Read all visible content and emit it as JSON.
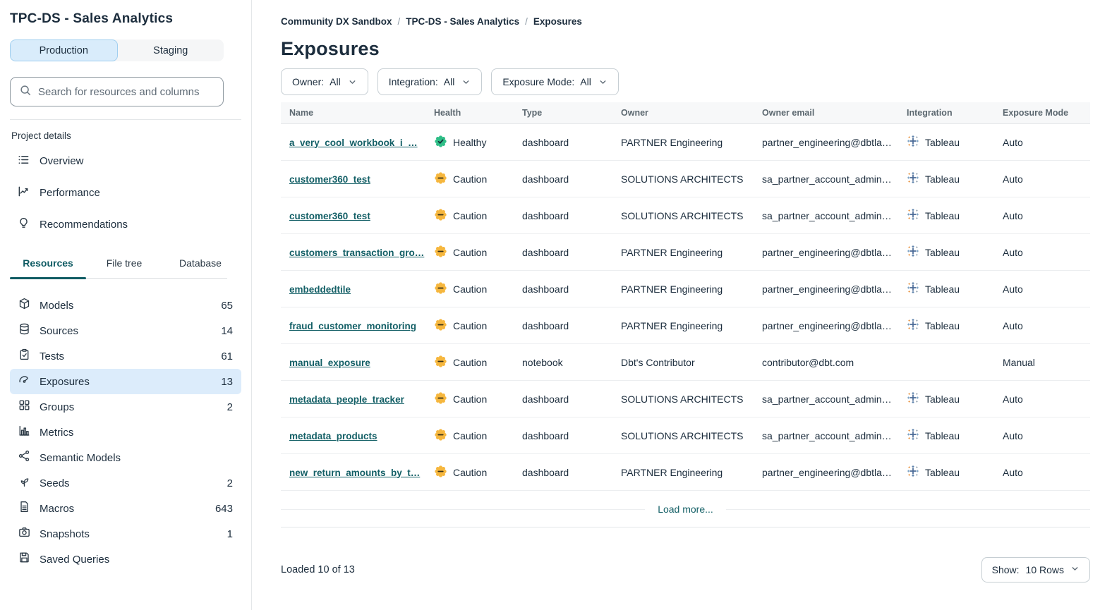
{
  "sidebar": {
    "title": "TPC-DS - Sales Analytics",
    "env": {
      "production": "Production",
      "staging": "Staging"
    },
    "search_placeholder": "Search for resources and columns",
    "project_details_label": "Project details",
    "project_links": [
      {
        "label": "Overview",
        "icon": "overview-icon"
      },
      {
        "label": "Performance",
        "icon": "performance-icon"
      },
      {
        "label": "Recommendations",
        "icon": "recommendations-icon"
      }
    ],
    "tabs": [
      {
        "label": "Resources",
        "active": true
      },
      {
        "label": "File tree",
        "active": false
      },
      {
        "label": "Database",
        "active": false
      }
    ],
    "resources": [
      {
        "label": "Models",
        "count": "65",
        "icon": "models-icon",
        "active": false
      },
      {
        "label": "Sources",
        "count": "14",
        "icon": "sources-icon",
        "active": false
      },
      {
        "label": "Tests",
        "count": "61",
        "icon": "tests-icon",
        "active": false
      },
      {
        "label": "Exposures",
        "count": "13",
        "icon": "exposures-icon",
        "active": true
      },
      {
        "label": "Groups",
        "count": "2",
        "icon": "groups-icon",
        "active": false
      },
      {
        "label": "Metrics",
        "count": "",
        "icon": "metrics-icon",
        "active": false
      },
      {
        "label": "Semantic Models",
        "count": "",
        "icon": "semantic-models-icon",
        "active": false
      },
      {
        "label": "Seeds",
        "count": "2",
        "icon": "seeds-icon",
        "active": false
      },
      {
        "label": "Macros",
        "count": "643",
        "icon": "macros-icon",
        "active": false
      },
      {
        "label": "Snapshots",
        "count": "1",
        "icon": "snapshots-icon",
        "active": false
      },
      {
        "label": "Saved Queries",
        "count": "",
        "icon": "saved-queries-icon",
        "active": false
      }
    ]
  },
  "breadcrumb": [
    "Community DX Sandbox",
    "TPC-DS - Sales Analytics",
    "Exposures"
  ],
  "page": {
    "title": "Exposures"
  },
  "filters": [
    {
      "label": "Owner:",
      "value": "All"
    },
    {
      "label": "Integration:",
      "value": "All"
    },
    {
      "label": "Exposure Mode:",
      "value": "All"
    }
  ],
  "table": {
    "columns": [
      "Name",
      "Health",
      "Type",
      "Owner",
      "Owner email",
      "Integration",
      "Exposure Mode"
    ],
    "rows": [
      {
        "name": "a_very_cool_workbook_i_…",
        "health": "Healthy",
        "health_status": "healthy",
        "type": "dashboard",
        "owner": "PARTNER Engineering",
        "email": "partner_engineering@dbtla…",
        "integration": "Tableau",
        "mode": "Auto"
      },
      {
        "name": "customer360_test",
        "health": "Caution",
        "health_status": "caution",
        "type": "dashboard",
        "owner": "SOLUTIONS ARCHITECTS",
        "email": "sa_partner_account_admin…",
        "integration": "Tableau",
        "mode": "Auto"
      },
      {
        "name": "customer360_test",
        "health": "Caution",
        "health_status": "caution",
        "type": "dashboard",
        "owner": "SOLUTIONS ARCHITECTS",
        "email": "sa_partner_account_admin…",
        "integration": "Tableau",
        "mode": "Auto"
      },
      {
        "name": "customers_transaction_gro…",
        "health": "Caution",
        "health_status": "caution",
        "type": "dashboard",
        "owner": "PARTNER Engineering",
        "email": "partner_engineering@dbtla…",
        "integration": "Tableau",
        "mode": "Auto"
      },
      {
        "name": "embeddedtile",
        "health": "Caution",
        "health_status": "caution",
        "type": "dashboard",
        "owner": "PARTNER Engineering",
        "email": "partner_engineering@dbtla…",
        "integration": "Tableau",
        "mode": "Auto"
      },
      {
        "name": "fraud_customer_monitoring",
        "health": "Caution",
        "health_status": "caution",
        "type": "dashboard",
        "owner": "PARTNER Engineering",
        "email": "partner_engineering@dbtla…",
        "integration": "Tableau",
        "mode": "Auto"
      },
      {
        "name": "manual_exposure",
        "health": "Caution",
        "health_status": "caution",
        "type": "notebook",
        "owner": "Dbt's Contributor",
        "email": "contributor@dbt.com",
        "integration": "",
        "mode": "Manual"
      },
      {
        "name": "metadata_people_tracker",
        "health": "Caution",
        "health_status": "caution",
        "type": "dashboard",
        "owner": "SOLUTIONS ARCHITECTS",
        "email": "sa_partner_account_admin…",
        "integration": "Tableau",
        "mode": "Auto"
      },
      {
        "name": "metadata_products",
        "health": "Caution",
        "health_status": "caution",
        "type": "dashboard",
        "owner": "SOLUTIONS ARCHITECTS",
        "email": "sa_partner_account_admin…",
        "integration": "Tableau",
        "mode": "Auto"
      },
      {
        "name": "new_return_amounts_by_t…",
        "health": "Caution",
        "health_status": "caution",
        "type": "dashboard",
        "owner": "PARTNER Engineering",
        "email": "partner_engineering@dbtla…",
        "integration": "Tableau",
        "mode": "Auto"
      }
    ],
    "load_more": "Load more...",
    "integration_icon": "tableau-icon",
    "healthy_icon": "healthy-badge-icon",
    "caution_icon": "caution-badge-icon"
  },
  "footer": {
    "loaded_text": "Loaded 10 of 13",
    "show_label": "Show:",
    "show_value": "10 Rows"
  },
  "colors": {
    "accent_teal": "#0f5b63",
    "link_teal": "#135f66",
    "healthy_green": "#2fbe87",
    "caution_amber": "#f6b73e",
    "selected_blue": "#dcecfb",
    "production_blue": "#d9ecfb"
  }
}
